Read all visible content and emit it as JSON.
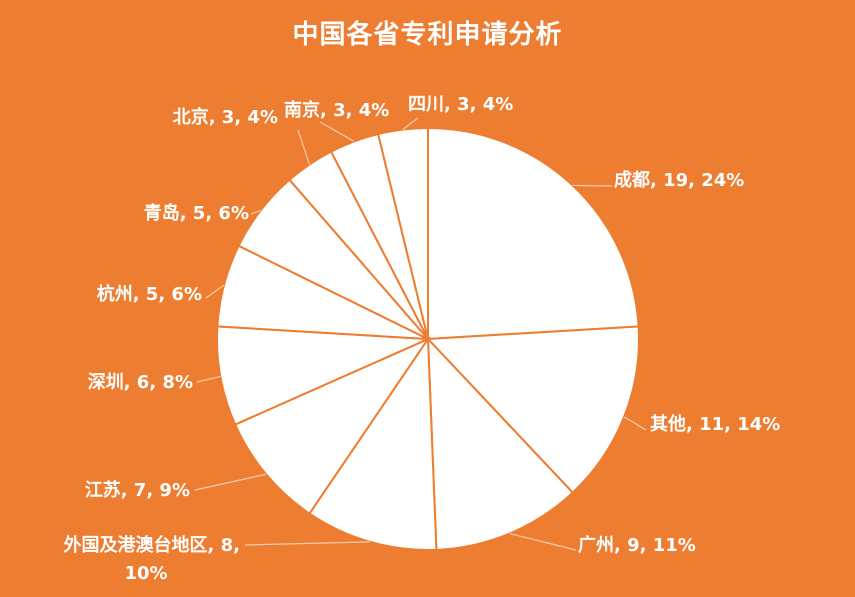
{
  "colors": {
    "background": "#ED7D31",
    "slice_fill": "#FFFFFF",
    "slice_stroke": "#ED7D31",
    "text": "#FFFFFF",
    "leader": "#F8CBAD"
  },
  "chart_data": {
    "type": "pie",
    "title": "中国各省专利申请分析",
    "start_angle_deg": 0,
    "direction": "clockwise",
    "slices": [
      {
        "name": "成都",
        "value": 19,
        "percent": "24%",
        "label": "成都, 19, 24%"
      },
      {
        "name": "其他",
        "value": 11,
        "percent": "14%",
        "label": "其他, 11, 14%"
      },
      {
        "name": "广州",
        "value": 9,
        "percent": "11%",
        "label": "广州, 9, 11%"
      },
      {
        "name": "外国及港澳台地区",
        "value": 8,
        "percent": "10%",
        "label": "外国及港澳台地区, 8, 10%"
      },
      {
        "name": "江苏",
        "value": 7,
        "percent": "9%",
        "label": "江苏, 7, 9%"
      },
      {
        "name": "深圳",
        "value": 6,
        "percent": "8%",
        "label": "深圳, 6, 8%"
      },
      {
        "name": "杭州",
        "value": 5,
        "percent": "6%",
        "label": "杭州, 5, 6%"
      },
      {
        "name": "青岛",
        "value": 5,
        "percent": "6%",
        "label": "青岛, 5, 6%"
      },
      {
        "name": "北京",
        "value": 3,
        "percent": "4%",
        "label": "北京, 3, 4%"
      },
      {
        "name": "南京",
        "value": 3,
        "percent": "4%",
        "label": "南京, 3, 4%"
      },
      {
        "name": "四川",
        "value": 3,
        "percent": "4%",
        "label": "四川, 3, 4%"
      }
    ]
  }
}
